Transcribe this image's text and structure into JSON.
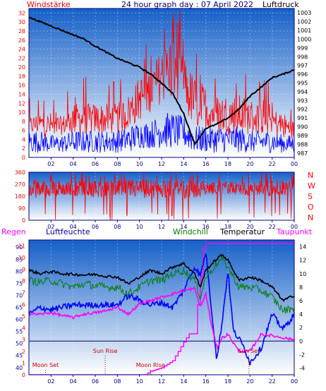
{
  "header": {
    "title": "24 hour graph day : 07 April 2022",
    "left_label": "Windstärke",
    "right_label": "Luftdruck"
  },
  "x_ticks": [
    "02",
    "04",
    "06",
    "08",
    "10",
    "12",
    "14",
    "16",
    "18",
    "20",
    "22",
    "00"
  ],
  "colors": {
    "bg_top": "#1560c8",
    "bg_bottom": "#ffffff",
    "wind": "#ff0000",
    "gust_base": "#0000ff",
    "pressure": "#000000",
    "humidity": "#0000ff",
    "windchill": "#008000",
    "temperature": "#000000",
    "dewpoint": "#ff00ff",
    "rain": "#ff00ff",
    "axis_text_red": "#ff0000",
    "axis_text_blue": "#0000a0",
    "axis_text_dark": "#000080"
  },
  "chart_data": [
    {
      "type": "line",
      "name": "wind-pressure",
      "left_axis": {
        "label": "Windstärke",
        "ticks": [
          0,
          2,
          4,
          6,
          8,
          10,
          12,
          14,
          16,
          18,
          20,
          22,
          24,
          26,
          28,
          30,
          32
        ],
        "ylim": [
          0,
          33
        ]
      },
      "right_axis": {
        "label": "Luftdruck",
        "ticks": [
          987,
          988,
          989,
          990,
          991,
          992,
          993,
          994,
          995,
          996,
          997,
          998,
          999,
          1000,
          1001,
          1002,
          1003
        ],
        "ylim": [
          986.5,
          1003.5
        ]
      },
      "x_range_hours": [
        0,
        24
      ],
      "series": [
        {
          "key": "wind",
          "axis": "left",
          "x": [
            0,
            1,
            2,
            3,
            4,
            5,
            6,
            7,
            8,
            9,
            10,
            11,
            12,
            13,
            14,
            15,
            16,
            17,
            18,
            19,
            20,
            21,
            22,
            23,
            24
          ],
          "envelope_high": [
            9,
            10,
            10,
            9,
            12,
            12,
            12,
            12,
            12,
            14,
            18,
            20,
            24,
            28,
            22,
            18,
            16,
            14,
            14,
            14,
            13,
            12,
            11,
            10,
            8
          ],
          "envelope_low": [
            5,
            5,
            4,
            5,
            5,
            5,
            5,
            5,
            5,
            6,
            8,
            10,
            12,
            12,
            10,
            6,
            6,
            5,
            5,
            5,
            5,
            5,
            5,
            4,
            4
          ],
          "peak": 33
        },
        {
          "key": "gust_base",
          "axis": "left",
          "x": [
            0,
            1,
            2,
            3,
            4,
            5,
            6,
            7,
            8,
            9,
            10,
            11,
            12,
            13,
            14,
            15,
            16,
            17,
            18,
            19,
            20,
            21,
            22,
            23,
            24
          ],
          "envelope_high": [
            6,
            6,
            5,
            5,
            6,
            6,
            6,
            6,
            6,
            7,
            8,
            8,
            10,
            10,
            9,
            7,
            7,
            7,
            7,
            7,
            6,
            6,
            6,
            5,
            5
          ],
          "envelope_low": [
            1,
            1,
            1,
            1,
            1,
            1,
            1,
            1,
            1,
            1,
            2,
            2,
            2,
            2,
            2,
            1,
            1,
            1,
            1,
            1,
            1,
            1,
            1,
            1,
            1
          ]
        },
        {
          "key": "pressure",
          "axis": "right",
          "x": [
            0,
            1,
            2,
            3,
            4,
            5,
            6,
            7,
            8,
            9,
            10,
            11,
            12,
            13,
            14,
            15,
            16,
            17,
            18,
            19,
            20,
            21,
            22,
            23,
            24
          ],
          "y": [
            1002.5,
            1002.0,
            1001.5,
            1001.0,
            1000.5,
            1000.0,
            999.2,
            998.5,
            997.8,
            997.3,
            996.8,
            996.0,
            995.0,
            993.8,
            991.5,
            988.0,
            989.8,
            990.3,
            991.0,
            992.0,
            993.5,
            994.5,
            995.6,
            996.0,
            996.5
          ]
        }
      ]
    },
    {
      "type": "scatter",
      "name": "wind-direction",
      "left_axis": {
        "ticks": [
          0,
          90,
          180,
          270,
          360
        ],
        "ylim": [
          0,
          360
        ]
      },
      "right_axis": {
        "ticks": [
          "N",
          "W",
          "S",
          "O",
          "N"
        ]
      },
      "x_range_hours": [
        0,
        24
      ],
      "x": [
        0,
        1,
        2,
        3,
        4,
        5,
        6,
        7,
        8,
        9,
        10,
        11,
        12,
        13,
        14,
        15,
        16,
        17,
        18,
        19,
        20,
        21,
        22,
        23,
        24
      ],
      "band_high": [
        300,
        310,
        300,
        300,
        290,
        300,
        300,
        300,
        300,
        310,
        310,
        310,
        300,
        300,
        310,
        310,
        290,
        290,
        290,
        290,
        300,
        300,
        300,
        300,
        290
      ],
      "band_low": [
        160,
        170,
        170,
        180,
        180,
        180,
        170,
        170,
        180,
        170,
        160,
        160,
        170,
        160,
        160,
        160,
        190,
        200,
        190,
        190,
        180,
        180,
        180,
        180,
        200
      ],
      "spike_min": 0
    },
    {
      "type": "line",
      "name": "temperature-humidity",
      "labels": {
        "rain": "Regen",
        "humidity": "Luftfeuchte",
        "windchill": "Windchill",
        "temperature": "Temperatur",
        "dewpoint": "Taupunkt"
      },
      "left_axis": {
        "ticks": [
          40,
          45,
          50,
          55,
          60,
          65,
          70,
          75,
          80,
          85,
          90
        ],
        "ylim": [
          37,
          93
        ]
      },
      "right_axis": {
        "ticks": [
          -4,
          -2,
          0,
          2,
          4,
          6,
          8,
          10,
          12,
          14
        ],
        "ylim": [
          -5,
          15
        ]
      },
      "rain_axis": {
        "ticks": [
          0,
          1,
          2,
          3,
          4,
          5,
          6,
          7,
          8,
          9,
          10,
          11
        ],
        "ylim": [
          0,
          11.5
        ]
      },
      "x_range_hours": [
        0,
        24
      ],
      "series": [
        {
          "key": "temperature",
          "axis": "right",
          "x": [
            0,
            1,
            2,
            3,
            4,
            5,
            6,
            7,
            8,
            9,
            10,
            11,
            12,
            13,
            14,
            15,
            15.5,
            16,
            17,
            17.5,
            18,
            19,
            20,
            21,
            22,
            23,
            24
          ],
          "y": [
            10.5,
            10.0,
            10.3,
            10.0,
            9.9,
            9.8,
            9.9,
            9.6,
            9.5,
            8.5,
            9.5,
            10.5,
            10.0,
            11.0,
            11.5,
            10.0,
            8.0,
            10.5,
            12.2,
            12.8,
            12.0,
            9.0,
            9.5,
            9.0,
            8.0,
            6.0,
            6.8
          ]
        },
        {
          "key": "windchill",
          "axis": "right",
          "x": [
            0,
            1,
            2,
            3,
            4,
            5,
            6,
            7,
            8,
            9,
            10,
            11,
            12,
            13,
            14,
            15,
            15.5,
            16,
            17,
            17.5,
            18,
            19,
            20,
            21,
            22,
            23,
            24
          ],
          "y": [
            9.0,
            8.7,
            9.0,
            8.5,
            8.0,
            8.5,
            8.2,
            8.0,
            8.0,
            7.0,
            8.0,
            9.0,
            9.0,
            10.0,
            10.5,
            9.0,
            6.5,
            9.5,
            11.5,
            12.2,
            11.0,
            8.0,
            8.0,
            7.5,
            6.5,
            4.5,
            5.0
          ]
        },
        {
          "key": "humidity",
          "axis": "left",
          "x": [
            0,
            1,
            2,
            3,
            4,
            5,
            6,
            7,
            8,
            9,
            10,
            11,
            12,
            13,
            14,
            15,
            15.5,
            16,
            16.5,
            17,
            17.5,
            18,
            18.5,
            19,
            19.5,
            20,
            21,
            22,
            23,
            24
          ],
          "y": [
            62,
            65,
            64,
            65,
            66,
            66,
            66,
            66,
            66,
            70,
            68,
            66,
            67,
            65,
            72,
            82,
            78,
            88,
            65,
            43,
            60,
            80,
            55,
            52,
            48,
            42,
            48,
            62,
            56,
            62
          ]
        },
        {
          "key": "dewpoint",
          "axis": "right",
          "x": [
            0,
            1,
            2,
            3,
            4,
            5,
            6,
            7,
            8,
            9,
            10,
            11,
            12,
            13,
            14,
            15,
            15.5,
            16,
            16.5,
            17,
            17.5,
            18,
            19,
            20,
            21,
            22,
            23,
            24
          ],
          "y": [
            4.0,
            4.0,
            4.2,
            3.8,
            3.5,
            4.0,
            4.2,
            4.5,
            5.0,
            4.0,
            5.5,
            6.0,
            6.5,
            7.0,
            7.5,
            7.8,
            5.0,
            7.0,
            2.5,
            -1.0,
            0.5,
            1.0,
            -1.5,
            -1.5,
            1.0,
            0.8,
            0.5,
            0.2
          ]
        },
        {
          "key": "rain",
          "axis": "rain",
          "x": [
            0,
            10.5,
            11,
            12,
            13,
            13.5,
            14,
            14.5,
            15,
            15.2,
            15.8,
            16,
            24
          ],
          "y": [
            0,
            0,
            0.3,
            0.6,
            1.2,
            2.0,
            2.8,
            3.5,
            3.5,
            5.5,
            11.2,
            11.2,
            11.2
          ]
        }
      ],
      "events": [
        {
          "label": "Moon Set",
          "hour": 1.5,
          "row": "low"
        },
        {
          "label": "Sun Rise",
          "hour": 6.9,
          "row": "high"
        },
        {
          "label": "Moon Rise",
          "hour": 11.0,
          "row": "low"
        },
        {
          "label": "Sun Set",
          "hour": 19.9,
          "row": "high"
        }
      ],
      "zero_line": 0
    }
  ]
}
